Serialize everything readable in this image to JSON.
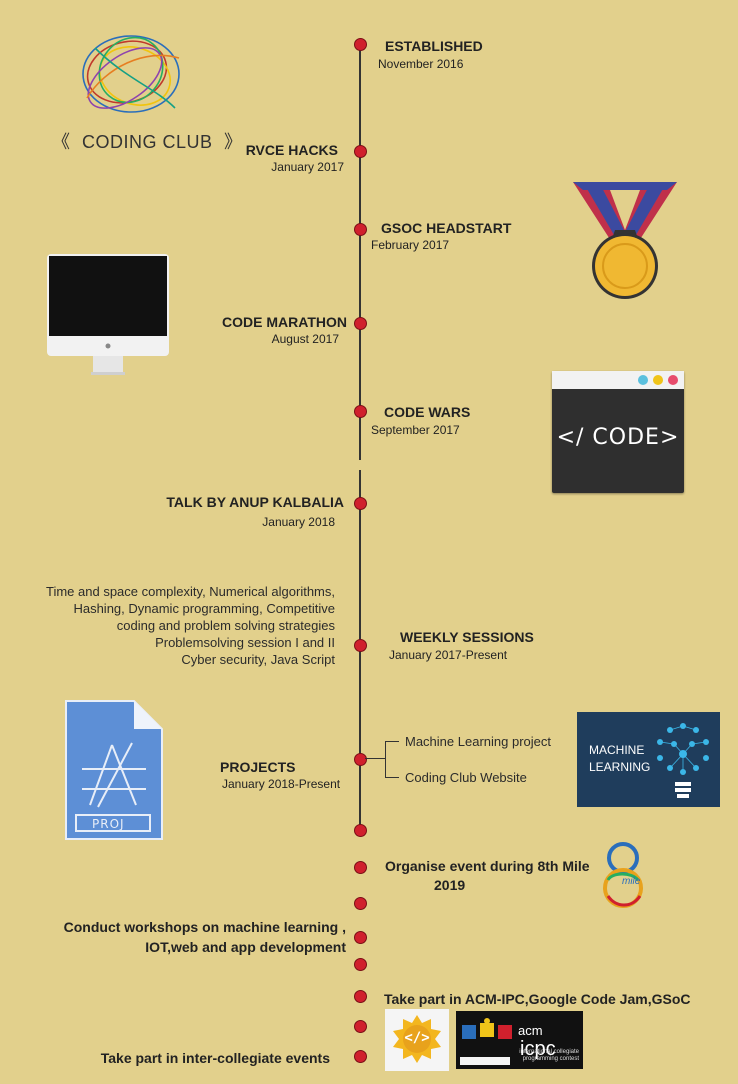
{
  "logo": {
    "text": "CODING CLUB",
    "left_deco": "《",
    "right_deco": "》"
  },
  "events": [
    {
      "title": "ESTABLISHED",
      "date": "November 2016"
    },
    {
      "title": "RVCE HACKS",
      "date": "January 2017"
    },
    {
      "title": "GSOC HEADSTART",
      "date": "February 2017"
    },
    {
      "title": "CODE MARATHON",
      "date": "August 2017"
    },
    {
      "title": "CODE WARS",
      "date": "September 2017"
    },
    {
      "title": "TALK BY ANUP KALBALIA",
      "date": "January 2018"
    },
    {
      "title": "WEEKLY SESSIONS",
      "date": "January 2017-Present"
    },
    {
      "title": "PROJECTS",
      "date": "January 2018-Present"
    }
  ],
  "sessions_topics": [
    "Time and space complexity, Numerical algorithms,",
    "Hashing, Dynamic programming, Competitive",
    "coding and problem solving strategies",
    "Problemsolving session I and II",
    "Cyber security, Java Script"
  ],
  "projects": [
    "Machine Learning project",
    "Coding Club Website"
  ],
  "future": {
    "mile_line1": "Organise event during 8th Mile",
    "mile_line2": "2019",
    "workshops_line1": "Conduct workshops on machine learning ,",
    "workshops_line2": "IOT,web and app development",
    "acm": "Take part in ACM-IPC,Google Code Jam,GSoC",
    "intercollegiate": "Take part in inter-collegiate events"
  },
  "code_window": {
    "text": "</ CODE>"
  },
  "ml_card": {
    "line1": "MACHINE",
    "line2": "LEARNING"
  },
  "proj_icon": {
    "label": "PROJ"
  },
  "mile_logo": {
    "text": "mile"
  },
  "gsoc_logo": {
    "glyph": "</>"
  },
  "icpc_logo": {
    "acm": "acm",
    "icpc": "icpc",
    "caption1": "international collegiate",
    "caption2": "programming contest"
  },
  "colors": {
    "background": "#e2d08c",
    "dot": "#d0202d",
    "line": "#333333"
  }
}
